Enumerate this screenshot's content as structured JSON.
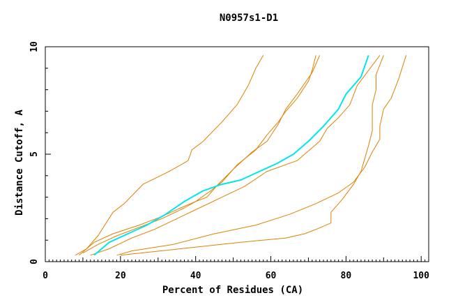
{
  "chart_data": {
    "type": "line",
    "title": "N0957s1-D1",
    "xlabel": "Percent of Residues (CA)",
    "ylabel": "Distance Cutoff, A",
    "xlim": [
      0,
      102
    ],
    "ylim": [
      0,
      10
    ],
    "x_ticks": [
      0,
      20,
      40,
      60,
      80,
      100
    ],
    "y_ticks": [
      0,
      5,
      10
    ],
    "grid": false,
    "legend": "none",
    "colors": {
      "highlight": "#00e5ee",
      "other": "#e08000",
      "axis": "#000000"
    },
    "series": [
      {
        "highlight": false,
        "points": [
          [
            8,
            0.3
          ],
          [
            11,
            0.6
          ],
          [
            14,
            1.2
          ],
          [
            18,
            2.3
          ],
          [
            21,
            2.7
          ],
          [
            26,
            3.6
          ],
          [
            33,
            4.2
          ],
          [
            38,
            4.7
          ],
          [
            39,
            5.2
          ],
          [
            42,
            5.6
          ],
          [
            47,
            6.5
          ],
          [
            51,
            7.3
          ],
          [
            54,
            8.2
          ],
          [
            56,
            9.0
          ],
          [
            58,
            9.6
          ]
        ]
      },
      {
        "highlight": false,
        "points": [
          [
            9,
            0.3
          ],
          [
            13,
            0.9
          ],
          [
            18,
            1.3
          ],
          [
            25,
            1.7
          ],
          [
            31,
            2.1
          ],
          [
            36,
            2.5
          ],
          [
            40,
            2.8
          ],
          [
            43,
            3.0
          ],
          [
            46,
            3.6
          ],
          [
            50,
            4.3
          ],
          [
            55,
            5.1
          ],
          [
            59,
            5.6
          ],
          [
            62,
            6.4
          ],
          [
            64,
            7.1
          ],
          [
            67,
            7.8
          ],
          [
            69,
            8.3
          ],
          [
            71,
            8.8
          ],
          [
            73,
            9.6
          ]
        ]
      },
      {
        "highlight": false,
        "points": [
          [
            10,
            0.4
          ],
          [
            14,
            0.8
          ],
          [
            19,
            1.2
          ],
          [
            25,
            1.6
          ],
          [
            31,
            2.0
          ],
          [
            37,
            2.5
          ],
          [
            40,
            2.8
          ],
          [
            44,
            3.3
          ],
          [
            47,
            3.7
          ],
          [
            51,
            4.5
          ],
          [
            56,
            5.2
          ],
          [
            59,
            5.9
          ],
          [
            62,
            6.5
          ],
          [
            64,
            7.0
          ],
          [
            67,
            7.6
          ],
          [
            70,
            8.4
          ],
          [
            71,
            8.9
          ],
          [
            72,
            9.6
          ]
        ]
      },
      {
        "highlight": false,
        "points": [
          [
            12,
            0.3
          ],
          [
            17,
            0.6
          ],
          [
            23,
            1.1
          ],
          [
            29,
            1.5
          ],
          [
            35,
            2.0
          ],
          [
            41,
            2.5
          ],
          [
            47,
            3.0
          ],
          [
            53,
            3.5
          ],
          [
            59,
            4.2
          ],
          [
            67,
            4.7
          ],
          [
            73,
            5.6
          ],
          [
            75,
            6.2
          ],
          [
            78,
            6.7
          ],
          [
            81,
            7.3
          ],
          [
            83,
            8.2
          ],
          [
            86,
            8.9
          ],
          [
            89,
            9.6
          ]
        ]
      },
      {
        "highlight": false,
        "points": [
          [
            19,
            0.3
          ],
          [
            23,
            0.5
          ],
          [
            34,
            0.8
          ],
          [
            45,
            1.3
          ],
          [
            56,
            1.7
          ],
          [
            65,
            2.2
          ],
          [
            72,
            2.7
          ],
          [
            78,
            3.2
          ],
          [
            82,
            3.7
          ],
          [
            85,
            4.4
          ],
          [
            87,
            5.1
          ],
          [
            89,
            5.7
          ],
          [
            89,
            6.3
          ],
          [
            90,
            7.1
          ],
          [
            92,
            7.6
          ],
          [
            94,
            8.5
          ],
          [
            96,
            9.6
          ]
        ]
      },
      {
        "highlight": false,
        "points": [
          [
            20,
            0.3
          ],
          [
            36,
            0.6
          ],
          [
            52,
            0.9
          ],
          [
            64,
            1.1
          ],
          [
            69,
            1.3
          ],
          [
            72,
            1.5
          ],
          [
            76,
            1.8
          ],
          [
            76,
            2.3
          ],
          [
            79,
            2.9
          ],
          [
            82,
            3.6
          ],
          [
            84,
            4.2
          ],
          [
            85,
            4.8
          ],
          [
            86,
            5.4
          ],
          [
            87,
            6.1
          ],
          [
            87,
            6.8
          ],
          [
            87,
            7.3
          ],
          [
            88,
            8.0
          ],
          [
            88,
            8.7
          ],
          [
            90,
            9.6
          ]
        ]
      },
      {
        "highlight": true,
        "points": [
          [
            13,
            0.3
          ],
          [
            17,
            0.9
          ],
          [
            22,
            1.3
          ],
          [
            27,
            1.7
          ],
          [
            32,
            2.2
          ],
          [
            37,
            2.8
          ],
          [
            42,
            3.3
          ],
          [
            47,
            3.6
          ],
          [
            52,
            3.8
          ],
          [
            57,
            4.2
          ],
          [
            62,
            4.6
          ],
          [
            66,
            5.0
          ],
          [
            70,
            5.6
          ],
          [
            74,
            6.3
          ],
          [
            78,
            7.1
          ],
          [
            80,
            7.8
          ],
          [
            82,
            8.2
          ],
          [
            84,
            8.6
          ],
          [
            86,
            9.6
          ]
        ]
      }
    ]
  }
}
